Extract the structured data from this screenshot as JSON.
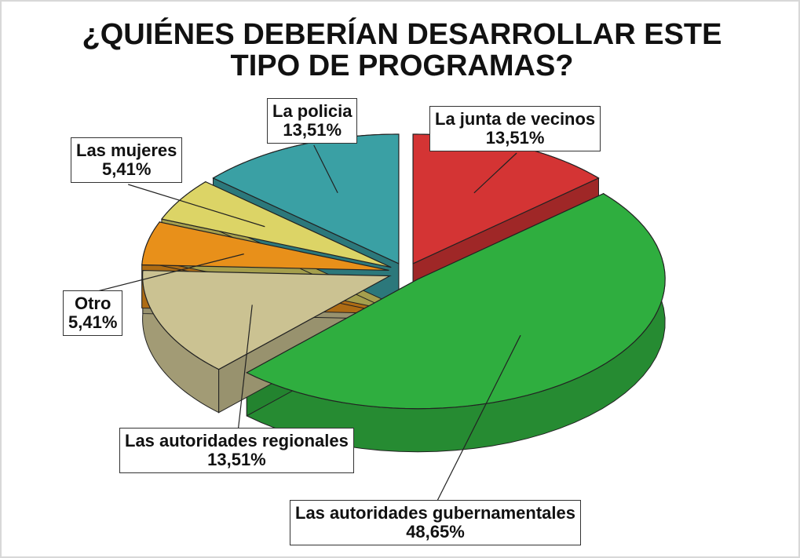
{
  "chart_data": {
    "type": "pie3d",
    "title": "¿QUIÉNES DEBERÍAN DESARROLLAR ESTE TIPO DE PROGRAMAS?",
    "categories": [
      "La junta de vecinos",
      "Las autoridades gubernamentales",
      "Las autoridades regionales",
      "Otro",
      "Las mujeres",
      "La policia"
    ],
    "values": [
      13.51,
      48.65,
      13.51,
      5.41,
      5.41,
      13.51
    ],
    "value_labels": [
      "13,51%",
      "48,65%",
      "13,51%",
      "5,41%",
      "5,41%",
      "13,51%"
    ],
    "colors": [
      "#d43434",
      "#2fae3f",
      "#cbc292",
      "#e8901a",
      "#dcd466",
      "#3aa0a4"
    ]
  }
}
